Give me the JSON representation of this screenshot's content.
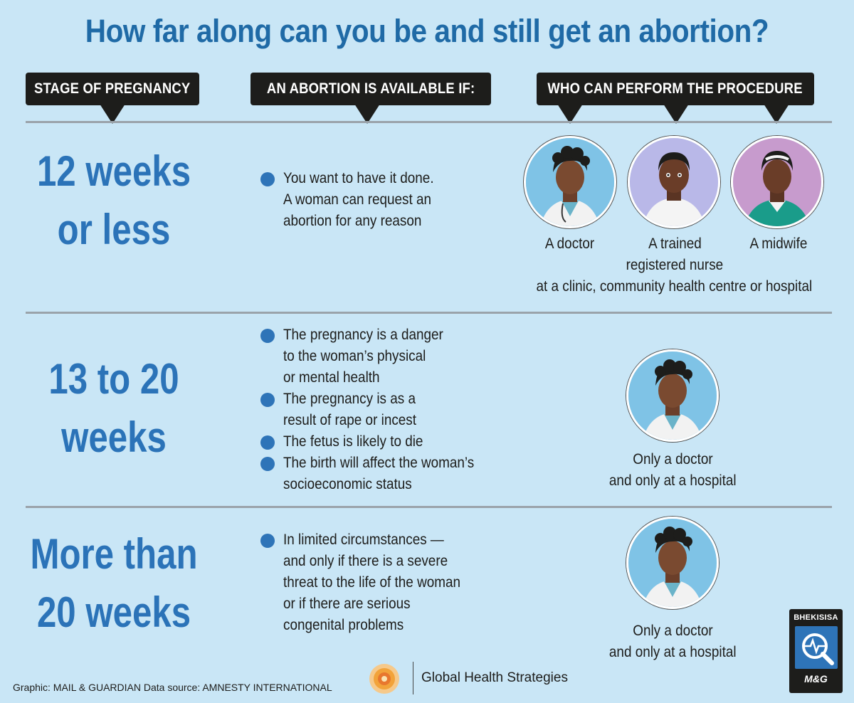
{
  "title": "How far along can you be and still get an abortion?",
  "headers": {
    "stage": "STAGE OF PREGNANCY",
    "available": "AN ABORTION IS AVAILABLE IF:",
    "who": "WHO CAN PERFORM THE PROCEDURE"
  },
  "rows": [
    {
      "stage_lines": [
        "12 weeks",
        "or less"
      ],
      "conditions": [
        [
          "You want to have it done.",
          "A woman can request an",
          "abortion for any reason"
        ]
      ],
      "providers": [
        "A doctor",
        "A trained",
        "registered nurse",
        "A midwife"
      ],
      "location": "at a clinic, community health centre or hospital"
    },
    {
      "stage_lines": [
        "13 to 20",
        "weeks"
      ],
      "conditions": [
        [
          "The pregnancy is a danger",
          "to the woman’s physical",
          "or mental health"
        ],
        [
          "The pregnancy is as a",
          "result of rape or incest"
        ],
        [
          "The fetus is likely to die"
        ],
        [
          "The birth will affect the woman’s",
          "socioeconomic status"
        ]
      ],
      "providers": [
        "Only a doctor",
        "and only at a hospital"
      ]
    },
    {
      "stage_lines": [
        "More than",
        "20 weeks"
      ],
      "conditions": [
        [
          "In limited circumstances —",
          "and only if there is a severe",
          "threat to the life of the woman",
          "or if there are serious",
          "congenital problems"
        ]
      ],
      "providers": [
        "Only a doctor",
        "and only at a hospital"
      ]
    }
  ],
  "footer": {
    "credit": "Graphic: MAIL & GUARDIAN  Data source: AMNESTY INTERNATIONAL",
    "partner": "Global Health Strategies",
    "badge_name": "BHEKISISA",
    "badge_mg": "M&G"
  },
  "colors": {
    "background": "#c9e6f6",
    "title": "#1f6aa6",
    "stage": "#2b73b8",
    "bullet": "#2e74b8",
    "header_bg": "#1d1d1b"
  },
  "icons": [
    "doctor-portrait-icon",
    "nurse-portrait-icon",
    "midwife-portrait-icon",
    "sun-logo-icon",
    "magnifier-badge-icon"
  ]
}
